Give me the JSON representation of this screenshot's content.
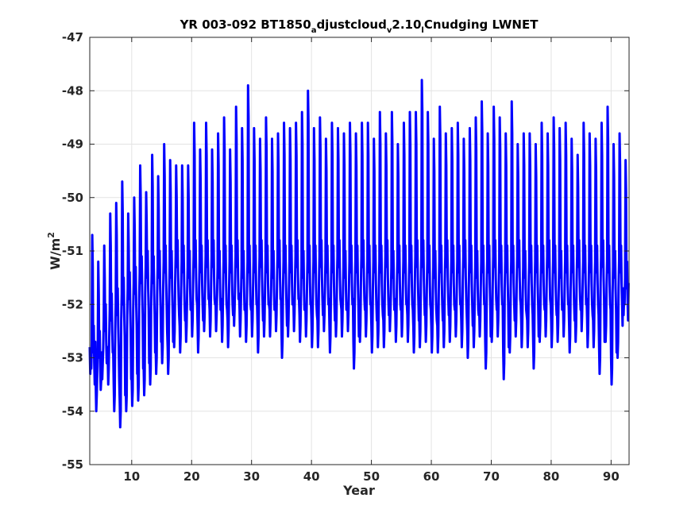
{
  "chart_data": {
    "type": "line",
    "title": {
      "prefix": "YR 003-092 BT1850",
      "sub1": "a",
      "mid": "djustcloud",
      "sub2": "v",
      "mid2": "2.10",
      "sub3": "l",
      "suffix": "Cnudging LWNET"
    },
    "xlabel": "Year",
    "ylabel": {
      "base": "W/m",
      "sup": "2"
    },
    "xlim": [
      3,
      93
    ],
    "ylim": [
      -55,
      -47
    ],
    "xticks": [
      10,
      20,
      30,
      40,
      50,
      60,
      70,
      80,
      90
    ],
    "yticks": [
      -55,
      -54,
      -53,
      -52,
      -51,
      -50,
      -49,
      -48,
      -47
    ],
    "grid": true,
    "line_color": "#0000ff",
    "series": [
      {
        "x_start": 3.0,
        "x_step": 0.0833333,
        "peaks": [
          -50.7,
          -51.2,
          -50.9,
          -50.3,
          -50.1,
          -49.7,
          -50.3,
          -50.0,
          -49.4,
          -49.9,
          -49.2,
          -49.6,
          -49.0,
          -49.3,
          -49.4,
          -49.4,
          -49.4,
          -48.6,
          -49.1,
          -48.6,
          -49.1,
          -48.8,
          -48.5,
          -49.1,
          -48.3,
          -48.7,
          -47.9,
          -48.7,
          -48.9,
          -48.5,
          -48.9,
          -48.8,
          -48.6,
          -48.7,
          -48.6,
          -48.4,
          -48.0,
          -48.7,
          -48.5,
          -48.9,
          -48.6,
          -48.7,
          -48.8,
          -48.6,
          -48.8,
          -48.6,
          -48.6,
          -48.9,
          -48.4,
          -48.8,
          -48.4,
          -49.0,
          -48.6,
          -48.4,
          -48.4,
          -47.8,
          -48.4,
          -48.9,
          -48.3,
          -48.8,
          -48.7,
          -48.6,
          -48.9,
          -48.7,
          -48.5,
          -48.2,
          -48.8,
          -48.3,
          -48.5,
          -48.8,
          -48.2,
          -49.0,
          -48.8,
          -48.8,
          -49.0,
          -48.6,
          -48.8,
          -48.5,
          -48.7,
          -48.6,
          -48.9,
          -49.2,
          -48.6,
          -48.8,
          -48.9,
          -48.6,
          -48.3,
          -49.0,
          -48.8,
          -49.3
        ],
        "troughs": [
          -53.3,
          -54.0,
          -53.4,
          -53.5,
          -54.0,
          -54.3,
          -54.0,
          -53.9,
          -53.8,
          -53.7,
          -53.5,
          -53.3,
          -53.1,
          -53.3,
          -52.8,
          -52.9,
          -52.7,
          -52.6,
          -52.9,
          -52.5,
          -52.6,
          -52.5,
          -52.7,
          -52.8,
          -52.4,
          -52.6,
          -52.7,
          -52.6,
          -52.9,
          -52.6,
          -52.6,
          -52.5,
          -53.0,
          -52.6,
          -52.5,
          -52.7,
          -52.6,
          -52.8,
          -52.8,
          -52.5,
          -52.9,
          -52.6,
          -52.6,
          -52.5,
          -53.2,
          -52.7,
          -52.6,
          -52.9,
          -52.8,
          -52.8,
          -52.5,
          -52.7,
          -52.6,
          -52.7,
          -52.9,
          -52.8,
          -52.7,
          -52.9,
          -52.9,
          -52.8,
          -52.7,
          -52.6,
          -52.8,
          -53.0,
          -52.8,
          -52.6,
          -53.2,
          -52.7,
          -52.6,
          -53.4,
          -52.9,
          -52.6,
          -52.8,
          -52.8,
          -53.2,
          -52.7,
          -52.6,
          -52.8,
          -52.7,
          -52.6,
          -52.9,
          -52.7,
          -52.5,
          -52.8,
          -52.8,
          -53.3,
          -52.7,
          -53.5,
          -53.0,
          -52.2
        ],
        "mid_values": [
          -52.9,
          -53.0,
          -52.5,
          -52.3,
          -52.2,
          -52.0,
          -51.9,
          -51.8,
          -51.6,
          -51.5,
          -51.6,
          -51.5,
          -51.4,
          -51.5,
          -51.3,
          -51.4,
          -51.5,
          -51.3,
          -51.4,
          -51.3,
          -51.3,
          -51.5,
          -51.4,
          -51.4,
          -51.3,
          -51.5,
          -51.4,
          -51.4,
          -51.3,
          -51.4,
          -51.5,
          -51.3,
          -51.4,
          -51.4,
          -51.3,
          -51.5,
          -51.4,
          -51.4,
          -51.3,
          -51.4,
          -51.4,
          -51.3,
          -51.5,
          -51.4,
          -51.4,
          -51.3,
          -51.4,
          -51.4,
          -51.4,
          -51.3,
          -51.5,
          -51.4,
          -51.4,
          -51.4,
          -51.3,
          -51.3,
          -51.4,
          -51.5,
          -51.4,
          -51.3,
          -51.4,
          -51.4,
          -51.3,
          -51.4,
          -51.5,
          -51.4,
          -51.4,
          -51.3,
          -51.4,
          -51.4,
          -51.4,
          -51.3,
          -51.5,
          -51.4,
          -51.4,
          -51.4,
          -51.3,
          -51.4,
          -51.5,
          -51.4,
          -51.4,
          -51.3,
          -51.4,
          -51.4,
          -51.4,
          -51.3,
          -51.4,
          -51.5,
          -51.4,
          -51.7
        ]
      }
    ]
  }
}
